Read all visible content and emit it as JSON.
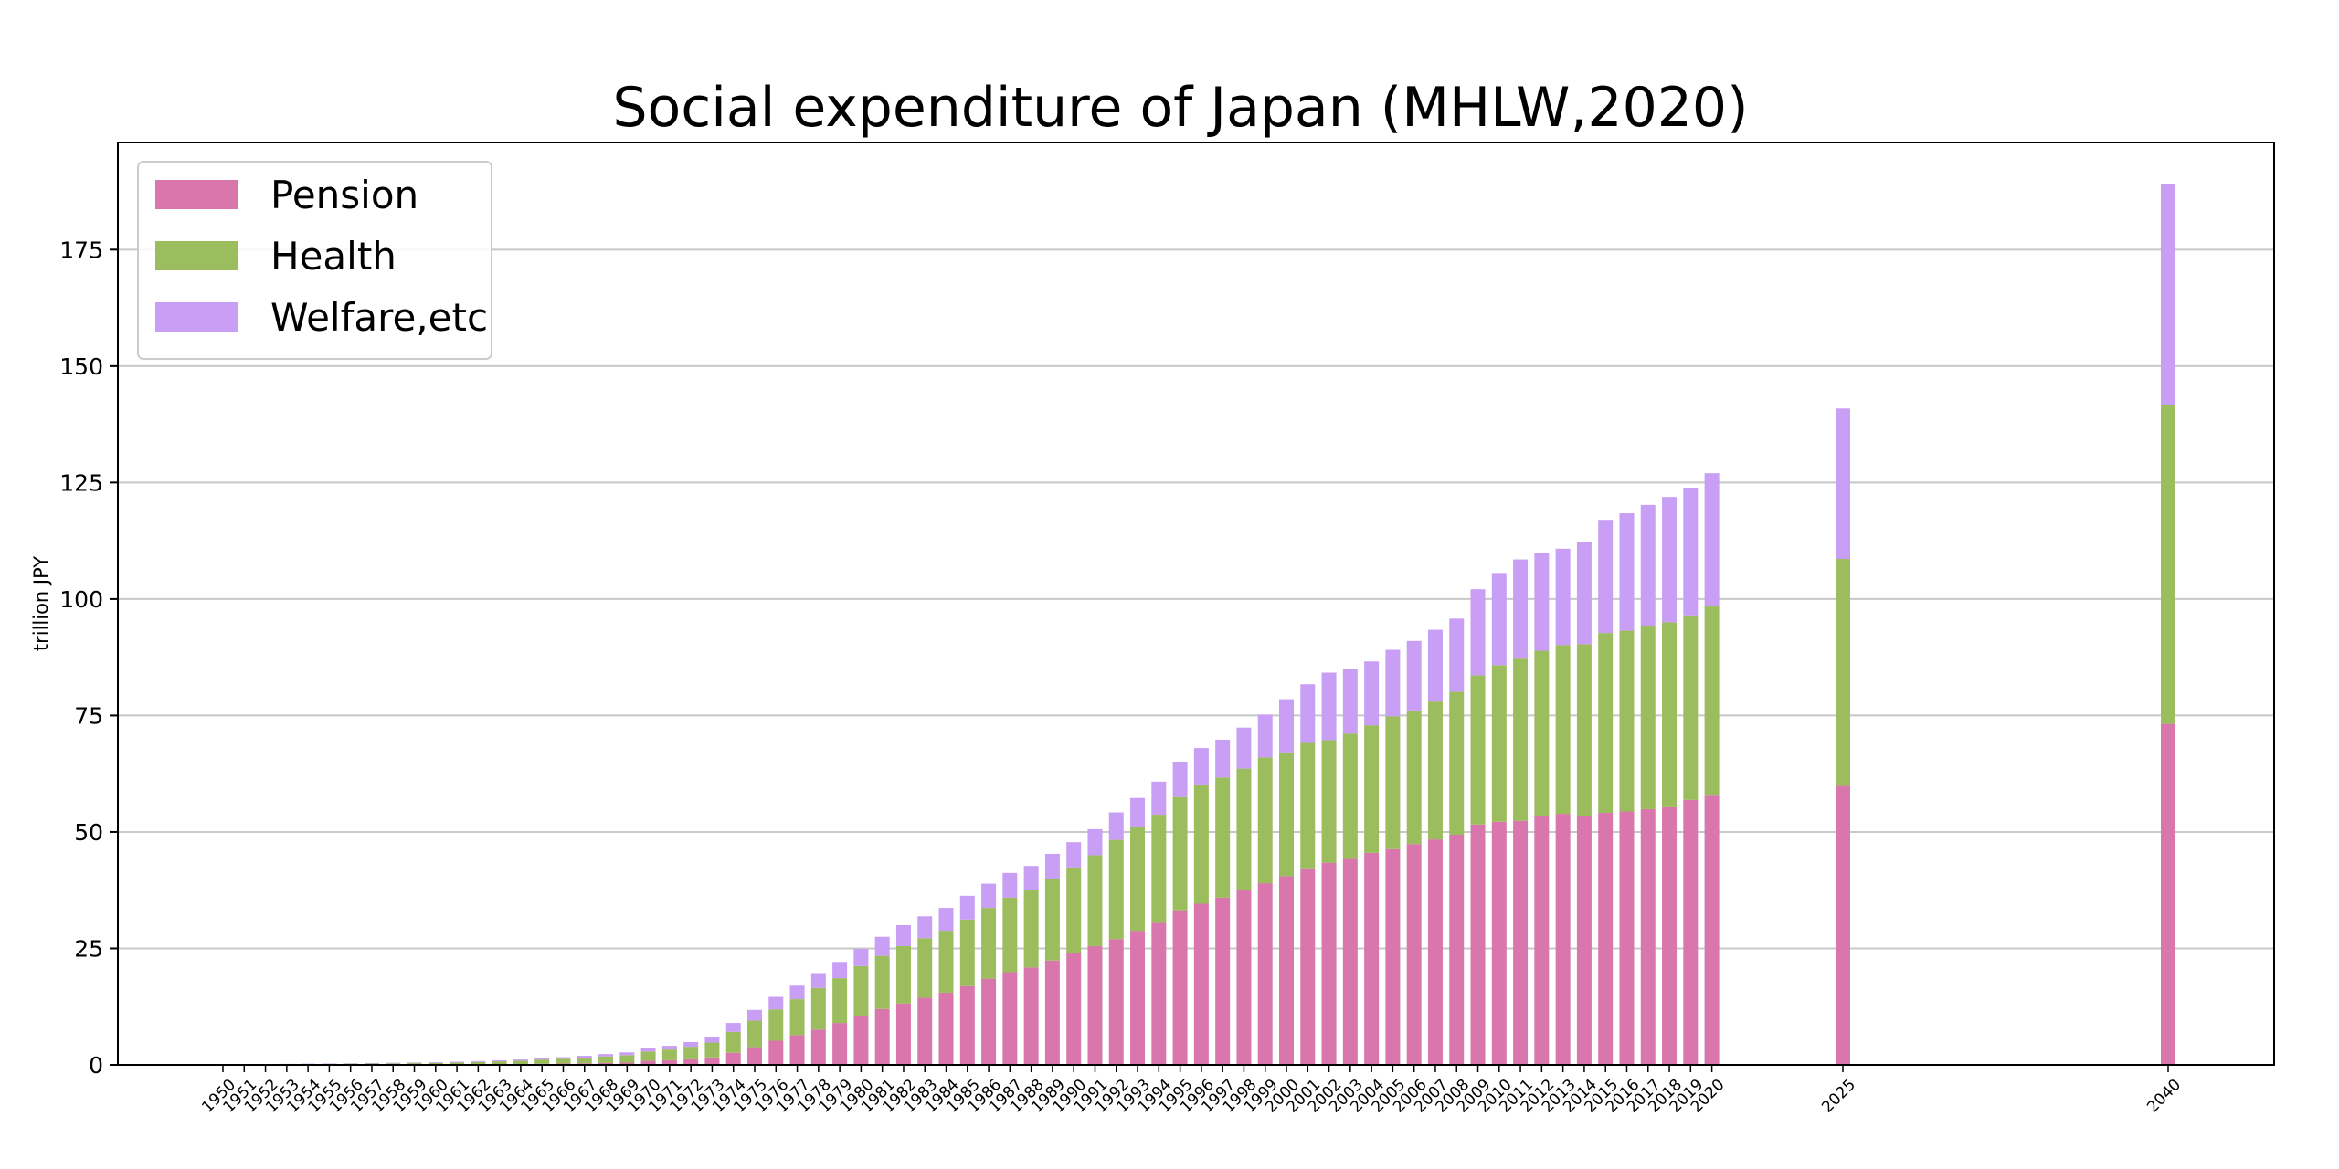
{
  "chart_data": {
    "type": "bar",
    "stacked": true,
    "title": "Social expenditure of Japan (MHLW,2020)",
    "xlabel": "",
    "ylabel": "trillion JPY",
    "ylim": [
      0,
      198
    ],
    "yticks": [
      0,
      25,
      50,
      75,
      100,
      125,
      150,
      175
    ],
    "grid": "horizontal",
    "legend": "top-left",
    "colors": {
      "Pension": "#d977ad",
      "Health": "#9cbd5d",
      "Welfare,etc": "#c99ef5"
    },
    "x": [
      1950,
      1951,
      1952,
      1953,
      1954,
      1955,
      1956,
      1957,
      1958,
      1959,
      1960,
      1961,
      1962,
      1963,
      1964,
      1965,
      1966,
      1967,
      1968,
      1969,
      1970,
      1971,
      1972,
      1973,
      1974,
      1975,
      1976,
      1977,
      1978,
      1979,
      1980,
      1981,
      1982,
      1983,
      1984,
      1985,
      1986,
      1987,
      1988,
      1989,
      1990,
      1991,
      1992,
      1993,
      1994,
      1995,
      1996,
      1997,
      1998,
      1999,
      2000,
      2001,
      2002,
      2003,
      2004,
      2005,
      2006,
      2007,
      2008,
      2009,
      2010,
      2011,
      2012,
      2013,
      2014,
      2015,
      2016,
      2017,
      2018,
      2019,
      2020,
      2025,
      2040
    ],
    "series": [
      {
        "name": "Pension",
        "values": [
          0.0,
          0.0,
          0.05,
          0.05,
          0.05,
          0.05,
          0.06,
          0.07,
          0.07,
          0.08,
          0.09,
          0.11,
          0.13,
          0.16,
          0.19,
          0.24,
          0.3,
          0.35,
          0.42,
          0.49,
          0.86,
          1.0,
          1.2,
          1.6,
          2.6,
          3.8,
          5.2,
          6.4,
          7.6,
          9.0,
          10.5,
          12.0,
          13.2,
          14.4,
          15.5,
          16.9,
          18.5,
          19.9,
          20.9,
          22.4,
          24.0,
          25.5,
          27.0,
          28.8,
          30.5,
          33.2,
          34.6,
          35.9,
          37.6,
          39.0,
          40.5,
          42.2,
          43.4,
          44.2,
          45.5,
          46.3,
          47.4,
          48.4,
          49.4,
          51.6,
          52.2,
          52.4,
          53.5,
          53.9,
          53.5,
          54.1,
          54.4,
          54.9,
          55.3,
          56.9,
          57.8,
          59.9,
          73.2
        ]
      },
      {
        "name": "Health",
        "values": [
          0.0,
          0.0,
          0.1,
          0.12,
          0.15,
          0.18,
          0.2,
          0.23,
          0.26,
          0.3,
          0.34,
          0.4,
          0.48,
          0.6,
          0.7,
          0.9,
          1.0,
          1.2,
          1.4,
          1.6,
          2.0,
          2.3,
          2.7,
          3.2,
          4.5,
          5.7,
          6.7,
          7.7,
          8.9,
          9.6,
          10.7,
          11.4,
          12.3,
          12.8,
          13.3,
          14.3,
          15.2,
          16.0,
          16.6,
          17.6,
          18.4,
          19.5,
          21.3,
          22.3,
          23.2,
          24.3,
          25.6,
          25.8,
          26.0,
          27.0,
          26.6,
          26.9,
          26.3,
          26.9,
          27.4,
          28.5,
          28.7,
          29.6,
          30.7,
          32.0,
          33.6,
          34.8,
          35.4,
          36.2,
          36.8,
          38.6,
          38.8,
          39.4,
          39.7,
          39.6,
          40.7,
          48.7,
          68.5
        ]
      },
      {
        "name": "Welfare,etc",
        "values": [
          0.0,
          0.0,
          0.05,
          0.05,
          0.07,
          0.08,
          0.09,
          0.1,
          0.12,
          0.13,
          0.15,
          0.17,
          0.2,
          0.23,
          0.26,
          0.3,
          0.35,
          0.4,
          0.5,
          0.6,
          0.7,
          0.8,
          1.0,
          1.2,
          1.9,
          2.3,
          2.7,
          2.9,
          3.2,
          3.5,
          3.7,
          4.1,
          4.5,
          4.7,
          4.9,
          5.1,
          5.2,
          5.3,
          5.2,
          5.3,
          5.4,
          5.6,
          5.9,
          6.2,
          7.1,
          7.6,
          7.8,
          8.1,
          8.8,
          9.2,
          11.4,
          12.6,
          14.5,
          13.8,
          13.7,
          14.3,
          14.9,
          15.4,
          15.7,
          18.5,
          19.8,
          21.3,
          20.9,
          20.7,
          21.9,
          24.3,
          25.2,
          25.9,
          26.9,
          27.4,
          28.5,
          32.3,
          47.3
        ]
      }
    ]
  }
}
